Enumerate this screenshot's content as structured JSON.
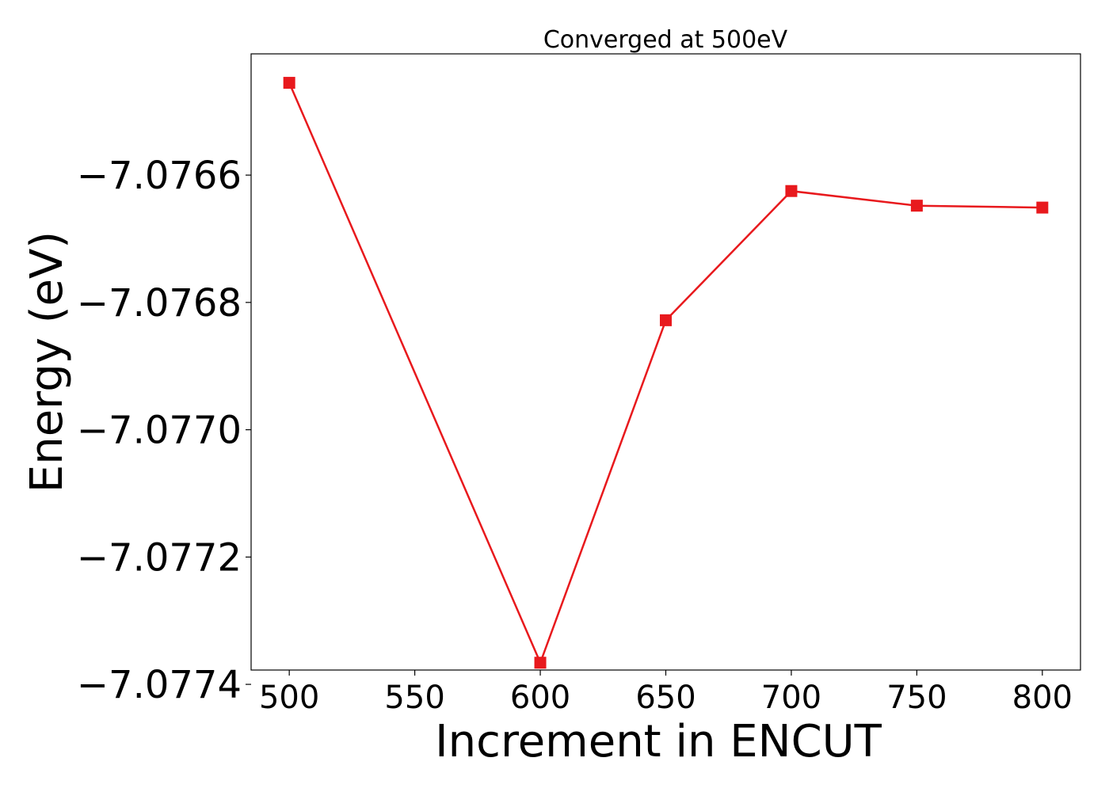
{
  "chart_data": {
    "type": "line",
    "title": "Converged at 500eV",
    "xlabel": "Increment in ENCUT",
    "ylabel": "Energy (eV)",
    "x": [
      500,
      600,
      650,
      700,
      750,
      800
    ],
    "series": [
      {
        "values": [
          -7.076455,
          -7.077366,
          -7.076828,
          -7.076625,
          -7.076648,
          -7.076651
        ],
        "color": "#e8191d",
        "marker": "square"
      }
    ],
    "x_ticks": [
      500,
      550,
      600,
      650,
      700,
      750,
      800
    ],
    "x_tick_labels": [
      "500",
      "550",
      "600",
      "650",
      "700",
      "750",
      "800"
    ],
    "y_ticks": [
      -7.0766,
      -7.0768,
      -7.077,
      -7.0772,
      -7.0774
    ],
    "y_tick_labels": [
      "−7.0766",
      "−7.0768",
      "−7.0770",
      "−7.0772",
      "−7.0774"
    ],
    "xlim": [
      484.8,
      815.2
    ],
    "ylim": [
      -7.0773775,
      -7.0764095
    ],
    "grid": false,
    "legend": "none"
  }
}
